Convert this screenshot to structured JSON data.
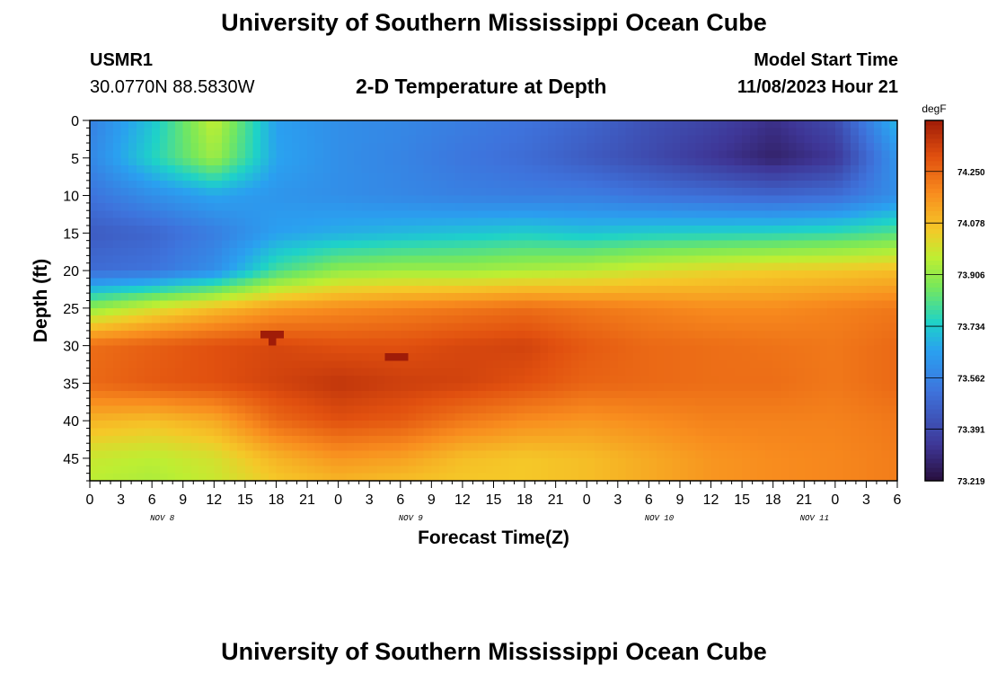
{
  "header": {
    "title": "University of Southern Mississippi Ocean Cube",
    "station_id": "USMR1",
    "coordinates": "30.0770N  88.5830W",
    "model_start_label": "Model Start Time",
    "model_start_value": "11/08/2023 Hour 21",
    "footer_title": "University of Southern Mississippi Ocean Cube"
  },
  "chart_data": {
    "type": "heatmap",
    "title": "2-D Temperature at Depth",
    "xlabel": "Forecast Time(Z)",
    "ylabel": "Depth (ft)",
    "x_tick_labels": [
      "0",
      "3",
      "6",
      "9",
      "12",
      "15",
      "18",
      "21",
      "0",
      "3",
      "6",
      "9",
      "12",
      "15",
      "18",
      "21",
      "0",
      "3",
      "6",
      "9",
      "12",
      "15",
      "18",
      "21",
      "0",
      "3",
      "6"
    ],
    "x_day_labels": [
      {
        "label": "NOV 8",
        "hour": 7
      },
      {
        "label": "NOV 9",
        "hour": 31
      },
      {
        "label": "NOV 10",
        "hour": 55
      },
      {
        "label": "NOV 11",
        "hour": 70
      }
    ],
    "xlim": [
      0,
      78
    ],
    "y_ticks": [
      0,
      5,
      10,
      15,
      20,
      25,
      30,
      35,
      40,
      45
    ],
    "ylim": [
      0,
      48
    ],
    "y_inverted": true,
    "colorbar": {
      "label": "degF",
      "tick_labels": [
        "74.250",
        "74.078",
        "73.906",
        "73.734",
        "73.562",
        "73.391",
        "73.219"
      ],
      "tick_values": [
        74.25,
        74.078,
        73.906,
        73.734,
        73.562,
        73.391,
        73.219
      ],
      "range": [
        73.219,
        74.42
      ]
    },
    "grid_hours": [
      0,
      6,
      12,
      18,
      24,
      30,
      36,
      42,
      48,
      54,
      60,
      66,
      72,
      78
    ],
    "grid_depths": [
      0,
      5,
      10,
      15,
      20,
      25,
      30,
      35,
      40,
      45,
      48
    ],
    "values": [
      [
        73.56,
        73.72,
        73.97,
        73.65,
        73.6,
        73.58,
        73.55,
        73.52,
        73.48,
        73.42,
        73.38,
        73.32,
        73.4,
        73.7
      ],
      [
        73.58,
        73.75,
        73.92,
        73.66,
        73.6,
        73.57,
        73.53,
        73.5,
        73.45,
        73.4,
        73.34,
        73.28,
        73.34,
        73.62
      ],
      [
        73.52,
        73.6,
        73.66,
        73.62,
        73.6,
        73.58,
        73.56,
        73.55,
        73.55,
        73.52,
        73.5,
        73.48,
        73.5,
        73.6
      ],
      [
        73.45,
        73.48,
        73.55,
        73.65,
        73.68,
        73.7,
        73.72,
        73.74,
        73.72,
        73.74,
        73.75,
        73.76,
        73.78,
        73.82
      ],
      [
        73.5,
        73.52,
        73.6,
        73.8,
        73.9,
        73.92,
        73.92,
        73.94,
        73.96,
        74.0,
        74.03,
        74.05,
        74.06,
        74.08
      ],
      [
        73.9,
        74.0,
        74.08,
        74.15,
        74.18,
        74.2,
        74.22,
        74.24,
        74.22,
        74.2,
        74.18,
        74.18,
        74.2,
        74.22
      ],
      [
        74.24,
        74.27,
        74.3,
        74.32,
        74.3,
        74.3,
        74.32,
        74.33,
        74.28,
        74.25,
        74.24,
        74.23,
        74.22,
        74.25
      ],
      [
        74.25,
        74.28,
        74.3,
        74.33,
        74.36,
        74.34,
        74.33,
        74.3,
        74.26,
        74.25,
        74.24,
        74.24,
        74.22,
        74.25
      ],
      [
        74.1,
        74.08,
        74.12,
        74.25,
        74.3,
        74.28,
        74.22,
        74.18,
        74.16,
        74.18,
        74.2,
        74.2,
        74.2,
        74.22
      ],
      [
        73.98,
        73.96,
        74.0,
        74.1,
        74.16,
        74.14,
        74.08,
        74.06,
        74.08,
        74.12,
        74.16,
        74.18,
        74.19,
        74.21
      ],
      [
        73.96,
        73.94,
        73.98,
        74.06,
        74.1,
        74.08,
        74.06,
        74.06,
        74.08,
        74.12,
        74.16,
        74.18,
        74.19,
        74.21
      ]
    ],
    "hotspots": [
      {
        "hour": 17.5,
        "depth": 28.7,
        "value": 74.42
      },
      {
        "hour": 29.5,
        "depth": 31.5,
        "value": 74.48
      }
    ]
  }
}
